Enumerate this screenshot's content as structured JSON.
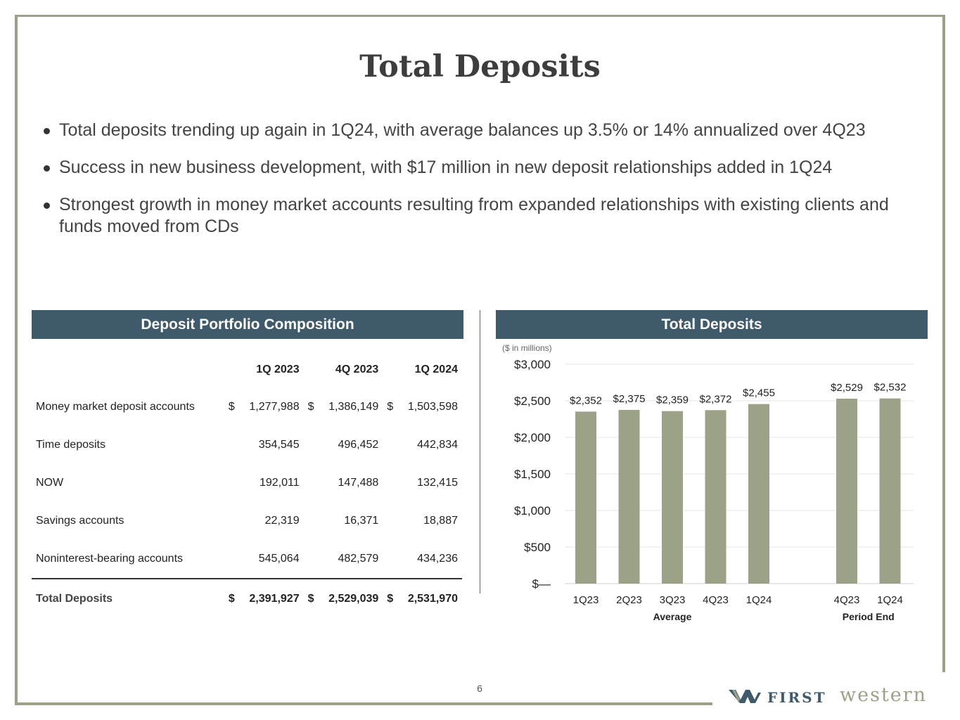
{
  "title": "Total Deposits",
  "bullets": [
    "Total deposits trending up again in 1Q24, with average balances up 3.5% or 14% annualized over 4Q23",
    "Success in new business development, with $17 million in new deposit relationships added in 1Q24",
    "Strongest growth in money market accounts resulting from expanded relationships with existing clients and funds moved from CDs"
  ],
  "composition": {
    "header": "Deposit Portfolio Composition",
    "columns": [
      "1Q 2023",
      "4Q 2023",
      "1Q 2024"
    ],
    "rows": [
      {
        "label": "Money market deposit accounts",
        "currency": "$",
        "values": [
          "1,277,988",
          "1,386,149",
          "1,503,598"
        ]
      },
      {
        "label": "Time deposits",
        "currency": "",
        "values": [
          "354,545",
          "496,452",
          "442,834"
        ]
      },
      {
        "label": "NOW",
        "currency": "",
        "values": [
          "192,011",
          "147,488",
          "132,415"
        ]
      },
      {
        "label": "Savings accounts",
        "currency": "",
        "values": [
          "22,319",
          "16,371",
          "18,887"
        ]
      },
      {
        "label": "Noninterest-bearing accounts",
        "currency": "",
        "values": [
          "545,064",
          "482,579",
          "434,236"
        ]
      }
    ],
    "total": {
      "label": "Total Deposits",
      "currency": "$",
      "values": [
        "2,391,927",
        "2,529,039",
        "2,531,970"
      ]
    }
  },
  "chart_panel": {
    "header": "Total Deposits",
    "units": "($ in millions)"
  },
  "chart_data": {
    "type": "bar",
    "title": "Total Deposits",
    "ylabel": "($ in millions)",
    "ylim": [
      0,
      3000
    ],
    "yticks": [
      0,
      500,
      1000,
      1500,
      2000,
      2500,
      3000
    ],
    "ytick_labels": [
      "$—",
      "$500",
      "$1,000",
      "$1,500",
      "$2,000",
      "$2,500",
      "$3,000"
    ],
    "groups": [
      {
        "name": "Average",
        "categories": [
          "1Q23",
          "2Q23",
          "3Q23",
          "4Q23",
          "1Q24"
        ],
        "values": [
          2352,
          2375,
          2359,
          2372,
          2455
        ],
        "labels": [
          "$2,352",
          "$2,375",
          "$2,359",
          "$2,372",
          "$2,455"
        ]
      },
      {
        "name": "Period End",
        "categories": [
          "4Q23",
          "1Q24"
        ],
        "values": [
          2529,
          2532
        ],
        "labels": [
          "$2,529",
          "$2,532"
        ]
      }
    ],
    "grid": true,
    "bar_color": "#9ca287"
  },
  "page_number": "6",
  "logo": {
    "first": "FIRST",
    "western": "western"
  }
}
